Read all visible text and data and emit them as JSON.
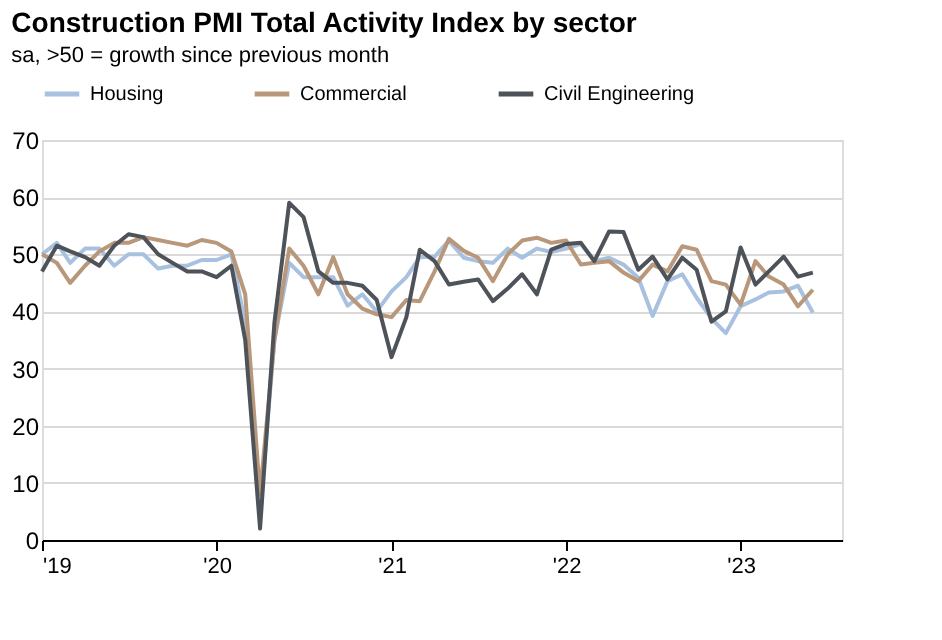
{
  "chart_data": {
    "type": "line",
    "title": "Construction PMI Total Activity Index by sector",
    "subtitle": "sa, >50 = growth since previous month",
    "x": [
      "2019-01",
      "2019-02",
      "2019-03",
      "2019-04",
      "2019-05",
      "2019-06",
      "2019-07",
      "2019-08",
      "2019-09",
      "2019-10",
      "2019-11",
      "2019-12",
      "2020-01",
      "2020-02",
      "2020-03",
      "2020-04",
      "2020-05",
      "2020-06",
      "2020-07",
      "2020-08",
      "2020-09",
      "2020-10",
      "2020-11",
      "2020-12",
      "2021-01",
      "2021-02",
      "2021-03",
      "2021-04",
      "2021-05",
      "2021-06",
      "2021-07",
      "2021-08",
      "2021-09",
      "2021-10",
      "2021-11",
      "2021-12",
      "2022-01",
      "2022-02",
      "2022-03",
      "2022-04",
      "2022-05",
      "2022-06",
      "2022-07",
      "2022-08",
      "2022-09",
      "2022-10",
      "2022-11",
      "2022-12",
      "2023-01",
      "2023-02",
      "2023-03",
      "2023-04",
      "2023-05",
      "2023-06"
    ],
    "series": [
      {
        "name": "Housing",
        "color": "#a9c1e0",
        "values": [
          50,
          52,
          48.5,
          51,
          51,
          48,
          50,
          50,
          47.5,
          48,
          48,
          49,
          49,
          50,
          38,
          5,
          35,
          48.5,
          46,
          46,
          46,
          41,
          43,
          40,
          43.5,
          46,
          49.5,
          49.6,
          52.4,
          49.4,
          48.8,
          48.5,
          51,
          49.4,
          51,
          50.4,
          51,
          51.8,
          48.8,
          49.4,
          48.2,
          45.9,
          39.2,
          45.3,
          46.5,
          42.4,
          38.8,
          36.2,
          40.9,
          42.1,
          43.3,
          43.5,
          44.5,
          39.8
        ]
      },
      {
        "name": "Commercial",
        "color": "#b8977a",
        "values": [
          50,
          48.5,
          45,
          48,
          50.5,
          52,
          52,
          53,
          52.5,
          52,
          51.5,
          52.5,
          52,
          50.5,
          43,
          8,
          35,
          51,
          48,
          43,
          49.5,
          43,
          40.5,
          39.5,
          39,
          42,
          41.8,
          47,
          52.7,
          50.6,
          49.4,
          45.3,
          50,
          52.4,
          52.9,
          52,
          52.4,
          48.2,
          48.5,
          48.8,
          46.8,
          45.3,
          48.2,
          47,
          51.4,
          50.8,
          45.3,
          44.7,
          41.2,
          48.8,
          46.1,
          44.7,
          40.9,
          43.8
        ]
      },
      {
        "name": "Civil Engineering",
        "color": "#4d5359",
        "values": [
          47,
          51.5,
          50.5,
          49.5,
          48,
          51.5,
          53.5,
          53,
          50,
          48.5,
          47,
          47,
          46,
          48,
          35,
          2,
          38,
          59,
          56.5,
          47,
          45,
          45,
          44.5,
          42,
          32,
          39,
          50.8,
          48.8,
          44.7,
          45.2,
          45.6,
          41.8,
          44,
          46.5,
          43,
          50.8,
          51.8,
          52,
          48.8,
          54,
          53.9,
          47.3,
          49.6,
          45.6,
          49.4,
          47.3,
          38.2,
          40,
          51.2,
          44.7,
          47,
          49.6,
          46.1,
          46.8
        ]
      }
    ],
    "xlim": [
      "2019-01",
      "2023-08"
    ],
    "xticks": [
      {
        "value": "2019-01",
        "label": "'19"
      },
      {
        "value": "2020-01",
        "label": "'20"
      },
      {
        "value": "2021-01",
        "label": "'21"
      },
      {
        "value": "2022-01",
        "label": "'22"
      },
      {
        "value": "2023-01",
        "label": "'23"
      }
    ],
    "ylim": [
      0,
      70
    ],
    "yticks": [
      0,
      10,
      20,
      30,
      40,
      50,
      60,
      70
    ],
    "grid": "y",
    "legend": "top"
  }
}
